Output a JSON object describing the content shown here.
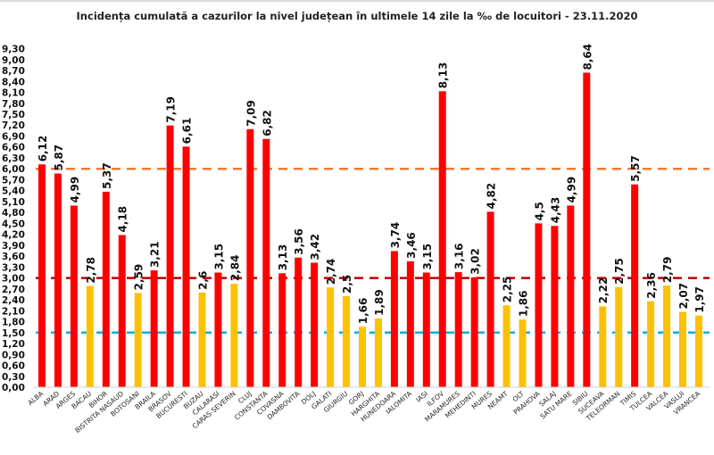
{
  "chart_data": {
    "type": "bar",
    "title": "Incidența cumulată a cazurilor la nivel județean în ultimele 14 zile la ‰ de locuitori - 23.11.2020",
    "xlabel": "",
    "ylabel": "",
    "ylim": [
      0,
      9.3
    ],
    "ytick_step": 0.3,
    "grid": false,
    "categories": [
      "ALBA",
      "ARAD",
      "ARGES",
      "BACAU",
      "BIHOR",
      "BISTRITA NASAUD",
      "BOTOSANI",
      "BRAILA",
      "BRASOV",
      "BUCURESTI",
      "BUZAU",
      "CALARASI",
      "CARAS-SEVERIN",
      "CLUJ",
      "CONSTANTA",
      "COVASNA",
      "DAMBOVITA",
      "DOLJ",
      "GALATI",
      "GIURGIU",
      "GORJ",
      "HARGHITA",
      "HUNEDOARA",
      "IALOMITA",
      "IASI",
      "ILFOV",
      "MARAMURES",
      "MEHEDINTI",
      "MURES",
      "NEAMT",
      "OLT",
      "PRAHOVA",
      "SALAJ",
      "SATU MARE",
      "SIBIU",
      "SUCEAVA",
      "TELEORMAN",
      "TIMIS",
      "TULCEA",
      "VALCEA",
      "VASLUI",
      "VRANCEA"
    ],
    "values": [
      6.12,
      5.87,
      4.99,
      2.78,
      5.37,
      4.18,
      2.59,
      3.21,
      7.19,
      6.61,
      2.6,
      3.15,
      2.84,
      7.09,
      6.82,
      3.13,
      3.56,
      3.42,
      2.74,
      2.5,
      1.66,
      1.89,
      3.74,
      3.46,
      3.15,
      8.13,
      3.16,
      3.02,
      4.82,
      2.25,
      1.86,
      4.5,
      4.43,
      4.99,
      8.64,
      2.22,
      2.75,
      5.57,
      2.36,
      2.79,
      2.07,
      1.97
    ],
    "reference_lines": [
      {
        "value": 6.0,
        "color": "#ed7d31"
      },
      {
        "value": 3.0,
        "color": "#c00000"
      },
      {
        "value": 1.5,
        "color": "#00b0f0"
      }
    ],
    "colors": {
      "above_3": "#ff0000",
      "below_3": "#ffc000"
    }
  }
}
